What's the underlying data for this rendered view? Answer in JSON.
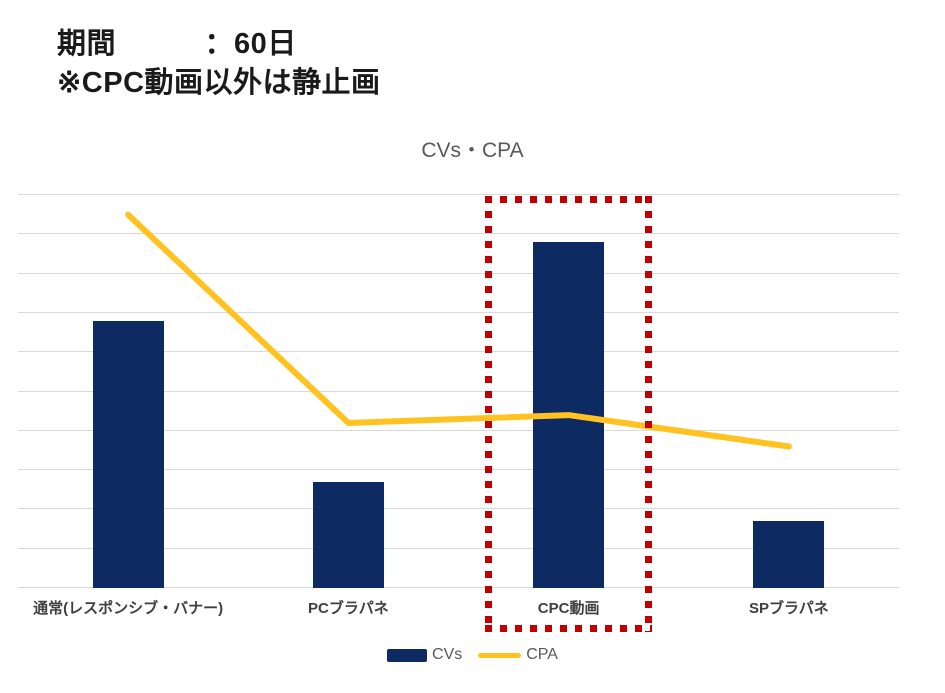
{
  "header": {
    "line1": "期間　　　：60日",
    "line2": "※CPC動画以外は静止画"
  },
  "chart_data": {
    "type": "bar",
    "title": "CVs・CPA",
    "categories": [
      "通常(レスポンシブ・バナー)",
      "PCブラパネ",
      "CPC動画",
      "SPブラパネ"
    ],
    "series": [
      {
        "name": "CVs",
        "type": "bar",
        "color": "#0E2A62",
        "values": [
          68,
          27,
          88,
          17
        ]
      },
      {
        "name": "CPA",
        "type": "line",
        "color": "#FFC220",
        "values": [
          95,
          42,
          44,
          36
        ]
      }
    ],
    "xlabel": "",
    "ylabel": "",
    "ylim": [
      0,
      100
    ],
    "grid_step": 10,
    "grid": "horizontal",
    "y_tick_labels_visible": false,
    "legend_position": "bottom"
  },
  "highlight": {
    "highlighted_category": "CPC動画",
    "category_index": 2,
    "style": "dotted-rectangle"
  },
  "colors": {
    "bar": "#0E2A62",
    "line": "#FFC220",
    "highlight": "#C00000",
    "gridline": "#D9D9D9",
    "title_text": "#595959",
    "axis_label_text": "#404040",
    "header_text": "#1A1A1A",
    "background": "#FFFFFF"
  }
}
